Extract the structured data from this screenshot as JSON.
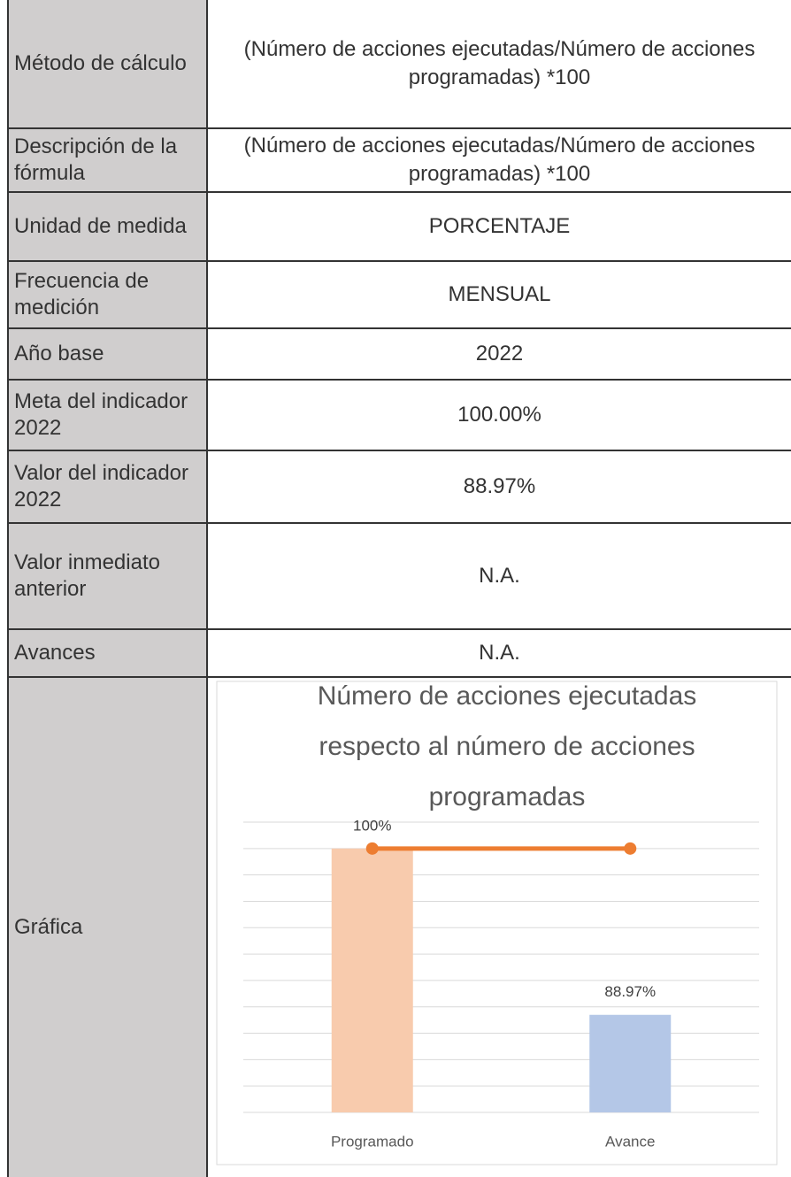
{
  "table": {
    "rows": [
      [
        "Método de cálculo",
        "(Número de acciones ejecutadas/Número de acciones programadas) *100"
      ],
      [
        "Descripción de la fórmula",
        "(Número de acciones ejecutadas/Número de acciones programadas) *100"
      ],
      [
        "Unidad de medida",
        "PORCENTAJE"
      ],
      [
        "Frecuencia de medición",
        "MENSUAL"
      ],
      [
        "Año base",
        "2022"
      ],
      [
        "Meta del indicador 2022",
        "100.00%"
      ],
      [
        "Valor del indicador 2022",
        "88.97%"
      ],
      [
        "Valor inmediato anterior",
        "N.A."
      ],
      [
        "Avances",
        "N.A."
      ],
      [
        "Gráfica"
      ]
    ]
  },
  "chart_data": {
    "type": "bar",
    "title": "Número de acciones ejecutadas respecto al número de acciones programadas",
    "categories": [
      "Programado",
      "Avance"
    ],
    "series": [
      {
        "type": "bar",
        "colors": [
          "#f8cbad",
          "#b4c7e7"
        ],
        "values": [
          100,
          88.97
        ],
        "value_labels": [
          "100%",
          "88.97%"
        ]
      },
      {
        "type": "line",
        "color": "#ed7d31",
        "values": [
          100,
          100
        ]
      }
    ],
    "ylim": [
      82.5,
      101.75
    ],
    "yticks": [
      82.5,
      84.25,
      86,
      87.75,
      89.5,
      91.25,
      93,
      94.75,
      96.5,
      98.25,
      100,
      101.75
    ],
    "grid": true
  }
}
